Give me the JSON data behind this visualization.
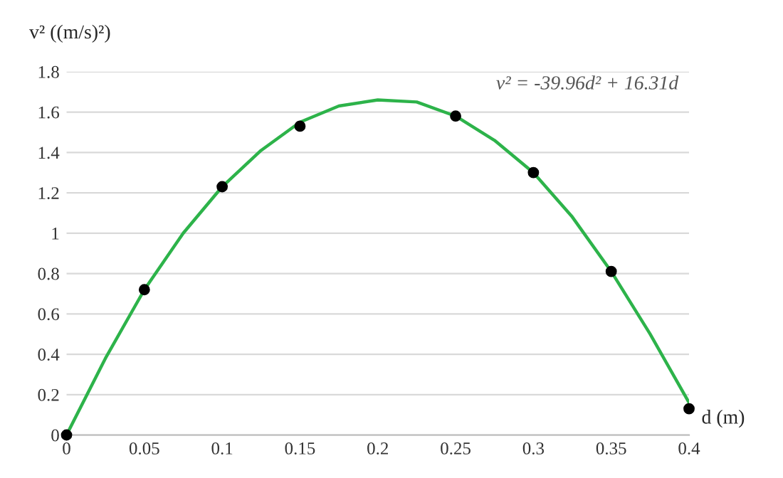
{
  "chart_data": {
    "type": "scatter",
    "xlabel": "d (m)",
    "ylabel": "v² ((m/s)²)",
    "annotations": [
      "v² = -39.96d² + 16.31d"
    ],
    "x": [
      0,
      0.05,
      0.1,
      0.15,
      0.25,
      0.3,
      0.35,
      0.4
    ],
    "series": [
      {
        "type": "line",
        "color": "#2db34a",
        "marker": "none",
        "x": [
          0,
          0.025,
          0.05,
          0.075,
          0.1,
          0.125,
          0.15,
          0.175,
          0.2,
          0.225,
          0.25,
          0.275,
          0.3,
          0.325,
          0.35,
          0.375,
          0.4
        ],
        "values": [
          0,
          0.38,
          0.72,
          1.0,
          1.23,
          1.41,
          1.55,
          1.63,
          1.66,
          1.65,
          1.58,
          1.46,
          1.3,
          1.08,
          0.81,
          0.5,
          0.16
        ]
      },
      {
        "color": "#000000",
        "marker": "circle",
        "values": [
          0,
          0.72,
          1.23,
          1.53,
          1.58,
          1.3,
          0.81,
          0.13
        ]
      }
    ],
    "xlim": [
      0,
      0.4
    ],
    "ylim": [
      0,
      1.8
    ],
    "xticks": [
      0,
      0.05,
      0.1,
      0.15,
      0.2,
      0.25,
      0.3,
      0.35,
      0.4
    ],
    "yticks": [
      0,
      0.2,
      0.4,
      0.6,
      0.8,
      1,
      1.2,
      1.4,
      1.6,
      1.8
    ],
    "grid": "y",
    "legend": false
  }
}
